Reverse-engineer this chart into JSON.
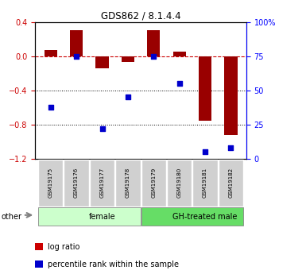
{
  "title": "GDS862 / 8.1.4.4",
  "samples": [
    "GSM19175",
    "GSM19176",
    "GSM19177",
    "GSM19178",
    "GSM19179",
    "GSM19180",
    "GSM19181",
    "GSM19182"
  ],
  "log_ratio": [
    0.07,
    0.3,
    -0.14,
    -0.07,
    0.3,
    0.05,
    -0.75,
    -0.92
  ],
  "percentile_rank": [
    38,
    75,
    22,
    45,
    75,
    55,
    5,
    8
  ],
  "left_ylim": [
    -1.2,
    0.4
  ],
  "right_ylim": [
    0,
    100
  ],
  "left_yticks": [
    -1.2,
    -0.8,
    -0.4,
    0.0,
    0.4
  ],
  "right_yticks": [
    0,
    25,
    50,
    75,
    100
  ],
  "right_yticklabels": [
    "0",
    "25",
    "50",
    "75",
    "100%"
  ],
  "bar_color": "#990000",
  "scatter_color": "#0000cc",
  "groups": [
    {
      "label": "female",
      "start": 0,
      "end": 4,
      "color": "#ccffcc"
    },
    {
      "label": "GH-treated male",
      "start": 4,
      "end": 8,
      "color": "#66dd66"
    }
  ],
  "other_label": "other",
  "legend_items": [
    {
      "label": "log ratio",
      "color": "#cc0000"
    },
    {
      "label": "percentile rank within the sample",
      "color": "#0000cc"
    }
  ],
  "hline_color": "#cc0000",
  "dot_grid_color": "#333333",
  "dot_grid_values": [
    -0.4,
    -0.8
  ],
  "bar_width": 0.5
}
